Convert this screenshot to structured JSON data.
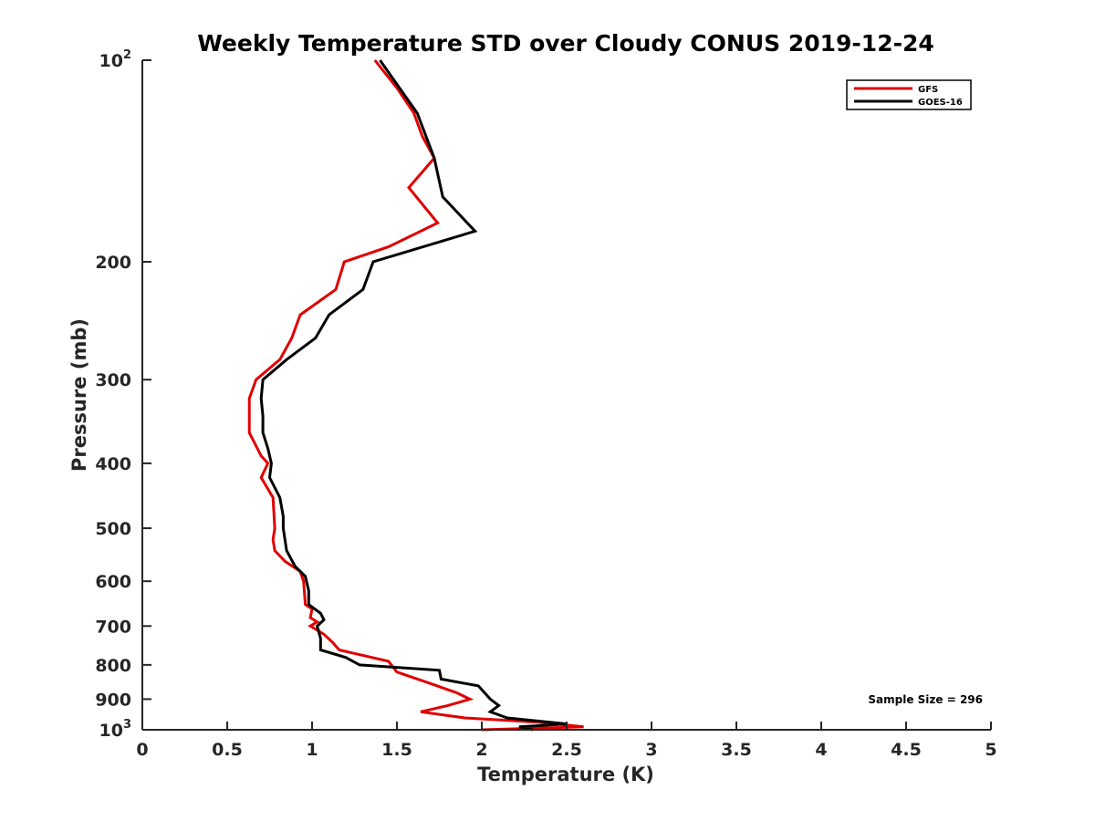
{
  "chart_data": {
    "type": "line",
    "title": "Weekly Temperature STD over Cloudy CONUS 2019-12-24",
    "xlabel": "Temperature (K)",
    "ylabel": "Pressure (mb)",
    "xlim": [
      0,
      5
    ],
    "ylim": [
      100,
      1000
    ],
    "y_scale": "log",
    "y_reversed": true,
    "grid": false,
    "legend_position": "top-right",
    "x_ticks": [
      {
        "value": 0,
        "label": "0"
      },
      {
        "value": 0.5,
        "label": "0.5"
      },
      {
        "value": 1,
        "label": "1"
      },
      {
        "value": 1.5,
        "label": "1.5"
      },
      {
        "value": 2,
        "label": "2"
      },
      {
        "value": 2.5,
        "label": "2.5"
      },
      {
        "value": 3,
        "label": "3"
      },
      {
        "value": 3.5,
        "label": "3.5"
      },
      {
        "value": 4,
        "label": "4"
      },
      {
        "value": 4.5,
        "label": "4.5"
      },
      {
        "value": 5,
        "label": "5"
      }
    ],
    "y_ticks": [
      {
        "value": 100,
        "base": "10",
        "exp": "2"
      },
      {
        "value": 200,
        "label": "200"
      },
      {
        "value": 300,
        "label": "300"
      },
      {
        "value": 400,
        "label": "400"
      },
      {
        "value": 500,
        "label": "500"
      },
      {
        "value": 600,
        "label": "600"
      },
      {
        "value": 700,
        "label": "700"
      },
      {
        "value": 800,
        "label": "800"
      },
      {
        "value": 900,
        "label": "900"
      },
      {
        "value": 1000,
        "base": "10",
        "exp": "3"
      }
    ],
    "annotation": "Sample Size = 296",
    "series": [
      {
        "name": "GFS",
        "color": "#e00000",
        "points": [
          [
            1.37,
            100
          ],
          [
            1.5,
            110
          ],
          [
            1.6,
            120
          ],
          [
            1.65,
            130
          ],
          [
            1.72,
            140
          ],
          [
            1.57,
            155
          ],
          [
            1.74,
            175
          ],
          [
            1.45,
            190
          ],
          [
            1.19,
            200
          ],
          [
            1.14,
            220
          ],
          [
            0.93,
            240
          ],
          [
            0.88,
            260
          ],
          [
            0.81,
            280
          ],
          [
            0.67,
            300
          ],
          [
            0.63,
            320
          ],
          [
            0.63,
            340
          ],
          [
            0.63,
            360
          ],
          [
            0.7,
            390
          ],
          [
            0.74,
            400
          ],
          [
            0.7,
            420
          ],
          [
            0.77,
            450
          ],
          [
            0.78,
            500
          ],
          [
            0.77,
            520
          ],
          [
            0.78,
            540
          ],
          [
            0.84,
            560
          ],
          [
            0.93,
            580
          ],
          [
            0.95,
            600
          ],
          [
            0.96,
            650
          ],
          [
            1.0,
            660
          ],
          [
            0.99,
            680
          ],
          [
            1.03,
            690
          ],
          [
            0.99,
            700
          ],
          [
            1.07,
            720
          ],
          [
            1.12,
            740
          ],
          [
            1.16,
            760
          ],
          [
            1.45,
            790
          ],
          [
            1.5,
            820
          ],
          [
            1.68,
            850
          ],
          [
            1.85,
            880
          ],
          [
            1.93,
            900
          ],
          [
            1.8,
            920
          ],
          [
            1.64,
            940
          ],
          [
            1.9,
            960
          ],
          [
            2.35,
            975
          ],
          [
            2.6,
            990
          ],
          [
            2.0,
            1000
          ]
        ]
      },
      {
        "name": "GOES-16",
        "color": "#000000",
        "points": [
          [
            1.4,
            100
          ],
          [
            1.62,
            120
          ],
          [
            1.72,
            140
          ],
          [
            1.77,
            160
          ],
          [
            1.96,
            180
          ],
          [
            1.36,
            200
          ],
          [
            1.3,
            220
          ],
          [
            1.1,
            240
          ],
          [
            1.02,
            260
          ],
          [
            0.85,
            280
          ],
          [
            0.71,
            300
          ],
          [
            0.7,
            320
          ],
          [
            0.71,
            340
          ],
          [
            0.71,
            360
          ],
          [
            0.74,
            380
          ],
          [
            0.76,
            400
          ],
          [
            0.75,
            420
          ],
          [
            0.81,
            450
          ],
          [
            0.83,
            480
          ],
          [
            0.83,
            500
          ],
          [
            0.85,
            540
          ],
          [
            0.9,
            570
          ],
          [
            0.96,
            590
          ],
          [
            0.98,
            620
          ],
          [
            0.98,
            650
          ],
          [
            1.05,
            670
          ],
          [
            1.07,
            685
          ],
          [
            1.03,
            700
          ],
          [
            1.05,
            730
          ],
          [
            1.05,
            745
          ],
          [
            1.05,
            760
          ],
          [
            1.2,
            780
          ],
          [
            1.28,
            800
          ],
          [
            1.75,
            815
          ],
          [
            1.76,
            840
          ],
          [
            1.98,
            860
          ],
          [
            2.05,
            900
          ],
          [
            2.1,
            920
          ],
          [
            2.05,
            940
          ],
          [
            2.15,
            960
          ],
          [
            2.5,
            980
          ],
          [
            2.22,
            990
          ],
          [
            2.3,
            1000
          ]
        ]
      }
    ]
  }
}
